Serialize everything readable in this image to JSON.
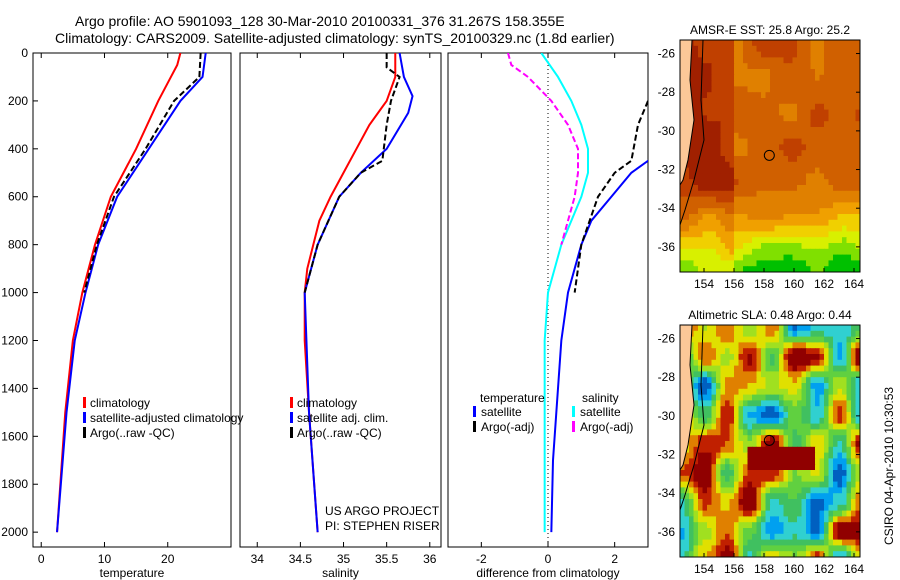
{
  "title_line1": "Argo profile: AO 5901093_128 30-Mar-2010 20100331_376 31.267S 158.355E",
  "title_line2": "Climatology: CARS2009. Satellite-adjusted climatology: synTS_20100329.nc (1.8d earlier)",
  "side_label": "CSIRO 04-Apr-2010 10:30:53",
  "project": [
    "US ARGO PROJECT",
    "PI: STEPHEN RISER"
  ],
  "colors": {
    "clim": "#ff0000",
    "sat": "#0000ff",
    "argo": "#000000",
    "sal_sat": "#00ffff",
    "sal_argo": "#ff00ff"
  },
  "chart_data": [
    {
      "type": "line",
      "xlabel": "temperature",
      "ylim": [
        0,
        2062
      ],
      "xlim": [
        -1.3,
        30
      ],
      "xticks": [
        0,
        10,
        20
      ],
      "yticks": [
        0,
        200,
        400,
        600,
        800,
        1000,
        1200,
        1400,
        1600,
        1800,
        2000
      ],
      "legend": [
        "climatology",
        "satellite-adjusted climatology",
        "Argo(..raw -QC)"
      ],
      "series": [
        {
          "name": "climatology",
          "color": "#ff0000",
          "depth": [
            0,
            50,
            100,
            200,
            400,
            600,
            800,
            1000,
            1200,
            1500,
            2000
          ],
          "values": [
            22,
            21.5,
            20.5,
            18.5,
            15,
            11,
            8.5,
            6.5,
            5,
            3.8,
            2.5
          ]
        },
        {
          "name": "satellite-adjusted climatology",
          "color": "#0000ff",
          "depth": [
            0,
            100,
            200,
            400,
            600,
            800,
            1000,
            1200,
            1500,
            2000
          ],
          "values": [
            26,
            25.5,
            22,
            17,
            12,
            9,
            7,
            5.3,
            4,
            2.5
          ]
        },
        {
          "name": "Argo",
          "color": "#000000",
          "dash": true,
          "depth": [
            0,
            100,
            200,
            400,
            600,
            800,
            1000
          ],
          "values": [
            25.2,
            25,
            21,
            16.5,
            11.5,
            8.8,
            6.8
          ]
        }
      ]
    },
    {
      "type": "line",
      "xlabel": "salinity",
      "ylim": [
        0,
        2062
      ],
      "xlim": [
        33.8,
        36.13
      ],
      "xticks": [
        34,
        34.5,
        35,
        35.5,
        36
      ],
      "legend": [
        "climatology",
        "satellite adj. clim.",
        "Argo(..raw -QC)"
      ],
      "series": [
        {
          "name": "climatology",
          "color": "#ff0000",
          "depth": [
            0,
            100,
            200,
            300,
            400,
            500,
            600,
            700,
            800,
            900,
            1000,
            1200,
            1500,
            2000
          ],
          "values": [
            35.6,
            35.6,
            35.5,
            35.3,
            35.15,
            35,
            34.85,
            34.72,
            34.65,
            34.58,
            34.55,
            34.55,
            34.6,
            34.7
          ]
        },
        {
          "name": "satellite adj. clim.",
          "color": "#0000ff",
          "depth": [
            0,
            100,
            180,
            250,
            400,
            500,
            600,
            800,
            1000,
            1500,
            2000
          ],
          "values": [
            35.65,
            35.7,
            35.8,
            35.75,
            35.5,
            35.2,
            34.95,
            34.7,
            34.55,
            34.6,
            34.7
          ]
        },
        {
          "name": "Argo",
          "color": "#000000",
          "dash": true,
          "depth": [
            0,
            60,
            100,
            200,
            300,
            450,
            500,
            600,
            800,
            1000
          ],
          "values": [
            35.5,
            35.5,
            35.65,
            35.55,
            35.5,
            35.45,
            35.2,
            34.95,
            34.7,
            34.55
          ]
        }
      ]
    },
    {
      "type": "line",
      "xlabel": "difference from climatology",
      "ylim": [
        0,
        2062
      ],
      "xlim": [
        -3,
        3
      ],
      "xticks": [
        -2,
        0,
        2
      ],
      "legend_headers": [
        "temperature",
        "salinity"
      ],
      "legend": [
        "satellite",
        "Argo(-adj)",
        "satellite",
        "Argo(-adj)"
      ],
      "series": [
        {
          "name": "temperature satellite",
          "color": "#0000ff",
          "depth": [
            440,
            500,
            600,
            700,
            800,
            1000,
            1200,
            1500,
            1700,
            2000
          ],
          "values": [
            3.1,
            2.5,
            1.9,
            1.3,
            1.0,
            0.6,
            0.4,
            0.25,
            0.15,
            0.1
          ]
        },
        {
          "name": "temperature Argo(-adj)",
          "color": "#000000",
          "dash": true,
          "depth": [
            200,
            300,
            450,
            500,
            600,
            800,
            1000
          ],
          "values": [
            3.0,
            2.7,
            2.5,
            2.0,
            1.5,
            1.0,
            0.8
          ]
        },
        {
          "name": "salinity satellite",
          "color": "#00ffff",
          "depth": [
            0,
            100,
            200,
            300,
            400,
            500,
            600,
            700,
            800,
            900,
            1000,
            1200,
            2000
          ],
          "values": [
            -0.2,
            0.3,
            0.7,
            1.0,
            1.2,
            1.2,
            1.0,
            0.7,
            0.4,
            0.2,
            0,
            -0.1,
            -0.1
          ]
        },
        {
          "name": "salinity Argo(-adj)",
          "color": "#ff00ff",
          "dash": true,
          "depth": [
            0,
            50,
            100,
            200,
            300,
            400,
            500,
            600,
            700,
            800
          ],
          "values": [
            -1.2,
            -1.1,
            -0.6,
            0.1,
            0.6,
            0.9,
            0.9,
            0.8,
            0.6,
            0.4
          ]
        }
      ]
    },
    {
      "type": "heatmap",
      "title": "AMSR-E SST: 25.8 Argo: 25.2",
      "xlim": [
        152.4,
        164.4
      ],
      "ylim": [
        -37.3,
        -25.3
      ],
      "xticks": [
        154,
        156,
        158,
        160,
        162,
        164
      ],
      "yticks": [
        -26,
        -28,
        -30,
        -32,
        -34,
        -36
      ],
      "marker": [
        158.355,
        -31.267
      ]
    },
    {
      "type": "heatmap",
      "title": "Altimetric SLA: 0.48 Argo: 0.44",
      "xlim": [
        152.4,
        164.4
      ],
      "ylim": [
        -37.3,
        -25.3
      ],
      "xticks": [
        154,
        156,
        158,
        160,
        162,
        164
      ],
      "yticks": [
        -26,
        -28,
        -30,
        -32,
        -34,
        -36
      ],
      "marker": [
        158.355,
        -31.267
      ]
    }
  ]
}
